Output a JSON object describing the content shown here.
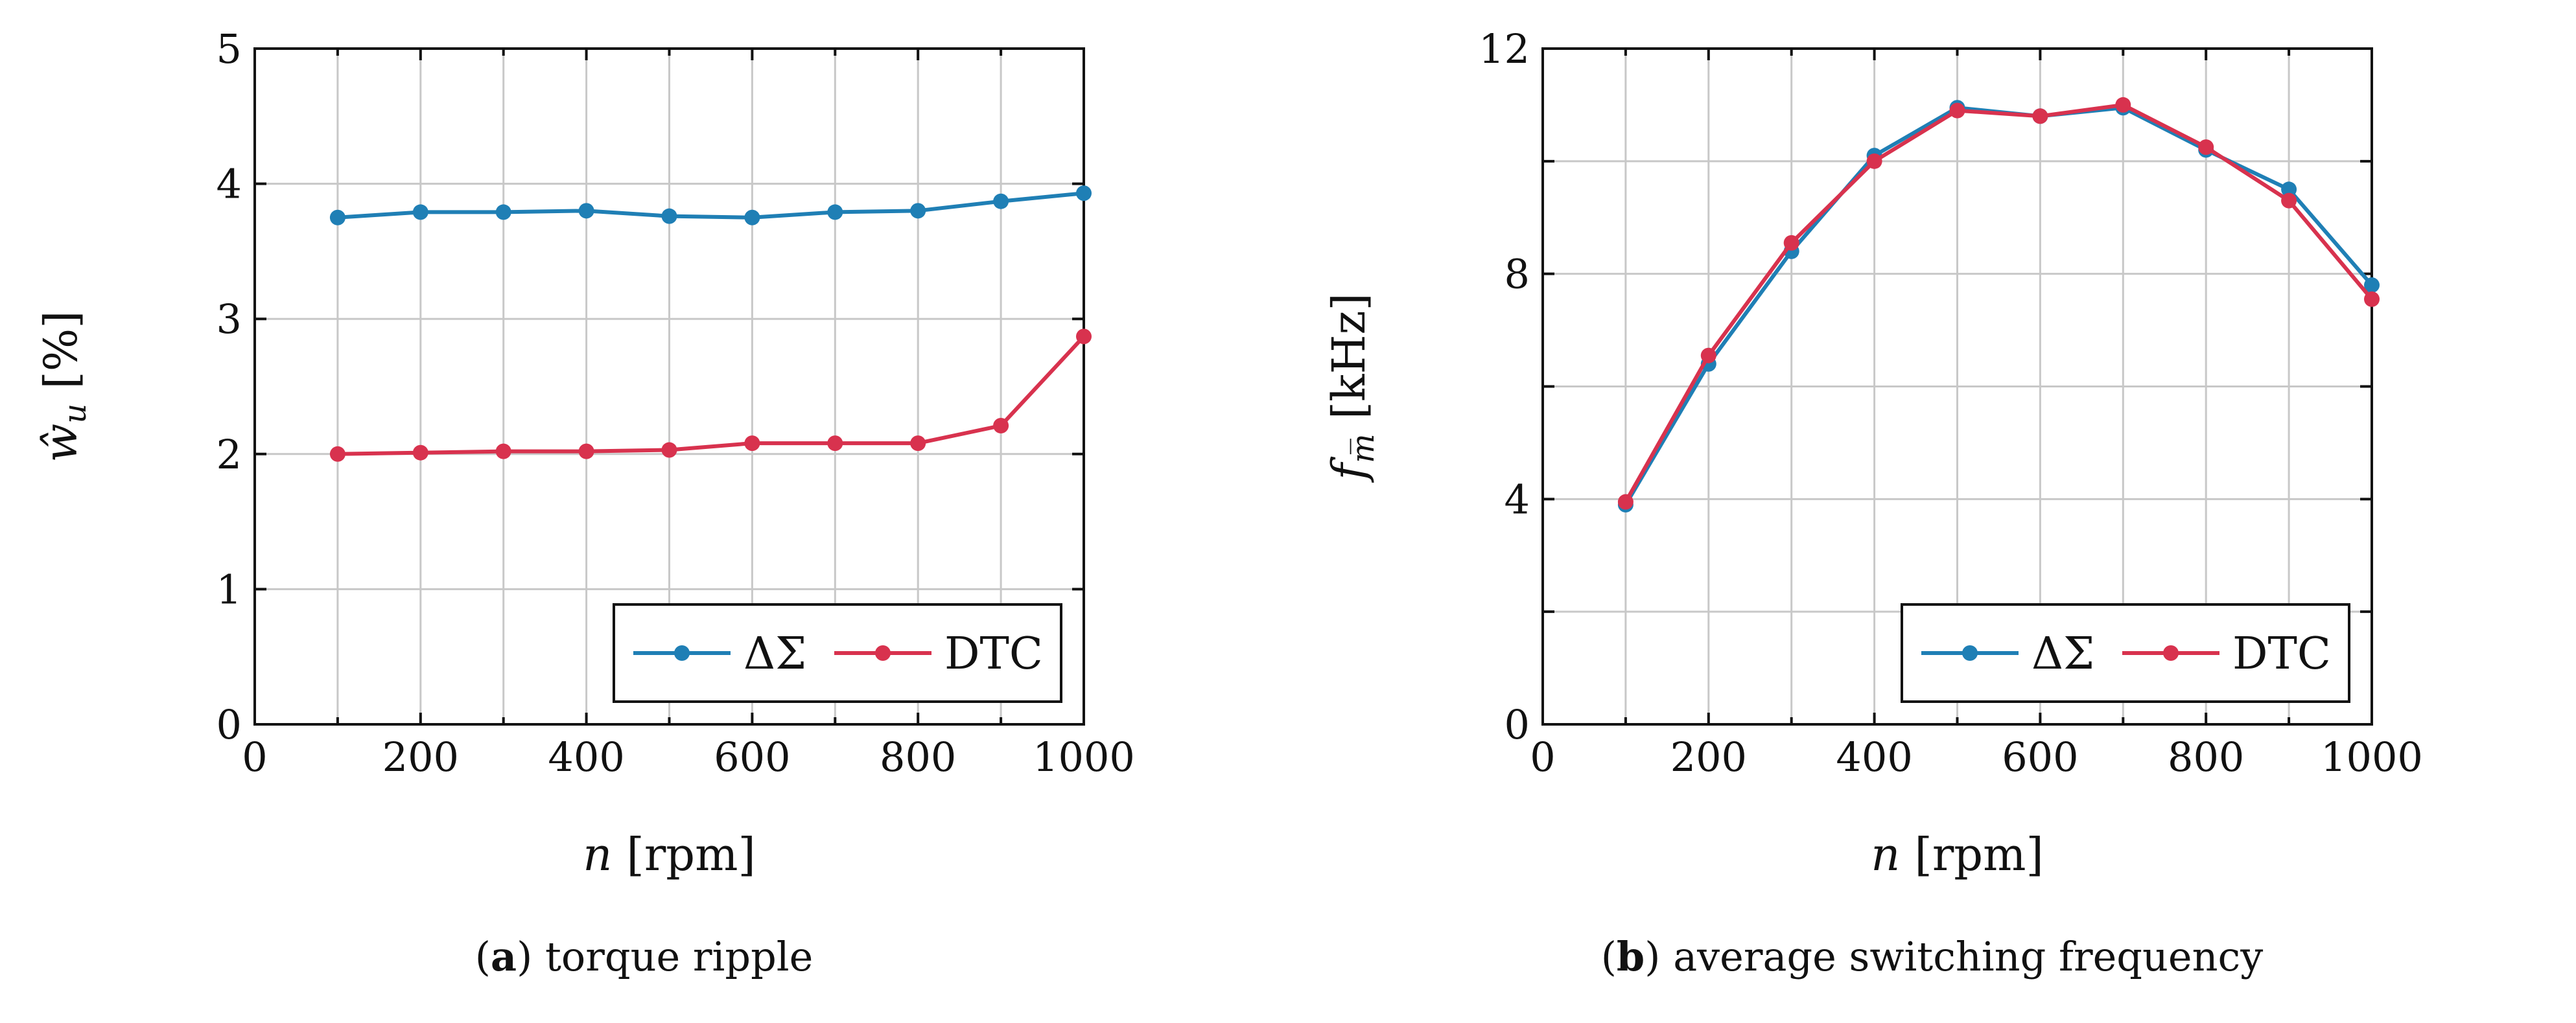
{
  "chart_data": [
    {
      "type": "line",
      "panel_letter": "a",
      "caption": "torque ripple",
      "xlabel_var": "n",
      "xlabel_unit": "[rpm]",
      "ylabel_var": "ŵ",
      "ylabel_sub": "u",
      "ylabel_unit": "[%]",
      "xlim": [
        0,
        1000
      ],
      "ylim": [
        0,
        5
      ],
      "xticks": [
        0,
        200,
        400,
        600,
        800,
        1000
      ],
      "yticks": [
        0,
        1,
        2,
        3,
        4,
        5
      ],
      "grid": true,
      "legend_position": "bottom-right",
      "x": [
        100,
        200,
        300,
        400,
        500,
        600,
        700,
        800,
        900,
        1000
      ],
      "series": [
        {
          "name": "ΔΣ",
          "color": "#1f7fb5",
          "values": [
            3.75,
            3.79,
            3.79,
            3.8,
            3.76,
            3.75,
            3.79,
            3.8,
            3.87,
            3.93
          ]
        },
        {
          "name": "DTC",
          "color": "#d8324e",
          "values": [
            2.0,
            2.01,
            2.02,
            2.02,
            2.03,
            2.08,
            2.08,
            2.08,
            2.21,
            2.87
          ]
        }
      ]
    },
    {
      "type": "line",
      "panel_letter": "b",
      "caption": "average switching frequency",
      "xlabel_var": "n",
      "xlabel_unit": "[rpm]",
      "ylabel_var": "f",
      "ylabel_sub": "m̅",
      "ylabel_unit": "[kHz]",
      "xlim": [
        0,
        1000
      ],
      "ylim": [
        0,
        12
      ],
      "xticks": [
        0,
        200,
        400,
        600,
        800,
        1000
      ],
      "yticks": [
        0,
        4,
        8,
        12
      ],
      "minor_yticks": [
        2,
        6,
        10
      ],
      "grid": true,
      "legend_position": "bottom-right",
      "x": [
        100,
        200,
        300,
        400,
        500,
        600,
        700,
        800,
        900,
        1000
      ],
      "series": [
        {
          "name": "ΔΣ",
          "color": "#1f7fb5",
          "values": [
            3.9,
            6.4,
            8.4,
            10.1,
            10.95,
            10.8,
            10.95,
            10.2,
            9.5,
            7.8
          ]
        },
        {
          "name": "DTC",
          "color": "#d8324e",
          "values": [
            3.95,
            6.55,
            8.55,
            10.0,
            10.9,
            10.8,
            11.0,
            10.25,
            9.3,
            7.55
          ]
        }
      ]
    }
  ]
}
